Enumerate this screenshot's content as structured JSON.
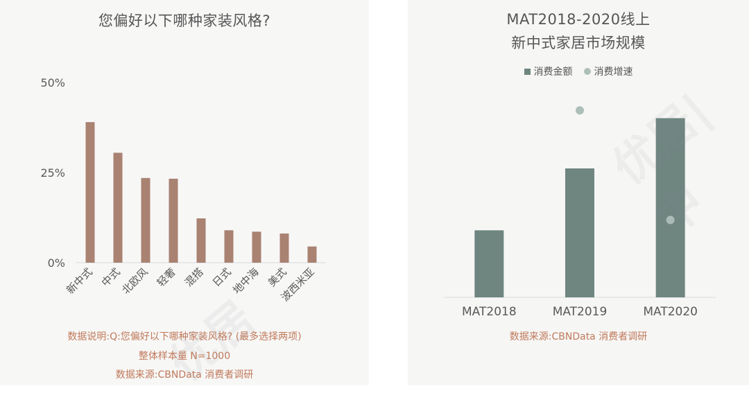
{
  "chart_data": [
    {
      "type": "bar",
      "title": "您偏好以下哪种家装风格?",
      "categories": [
        "新中式",
        "中式",
        "北欧风",
        "轻奢",
        "混搭",
        "日式",
        "地中海",
        "美式",
        "波西米亚"
      ],
      "values": [
        39,
        30.5,
        23.5,
        23.3,
        12.3,
        9,
        8.6,
        8.1,
        4.5
      ],
      "y_ticks": [
        "0%",
        "25%",
        "50%"
      ],
      "ylim": [
        0,
        50
      ],
      "bar_color": "#a98272",
      "grid": false,
      "notes": [
        "数据说明:Q:您偏好以下哪种家装风格? (最多选择两项)",
        "整体样本量 N=1000",
        "数据来源:CBNData 消费者调研"
      ]
    },
    {
      "type": "bar",
      "title_lines": [
        "MAT2018-2020线上",
        "新中式家居市场规模"
      ],
      "categories": [
        "MAT2018",
        "MAT2019",
        "MAT2020"
      ],
      "series": [
        {
          "name": "消费金额",
          "type": "bar",
          "values": [
            0.52,
            1.0,
            1.39
          ],
          "color": "#6e8580"
        },
        {
          "name": "消费增速",
          "type": "scatter",
          "values": [
            null,
            1.45,
            0.6
          ],
          "color": "#aebfba"
        }
      ],
      "notes": [
        "数据来源:CBNData 消费者调研"
      ]
    }
  ],
  "watermark": [
    "优居",
    "优居|中"
  ]
}
